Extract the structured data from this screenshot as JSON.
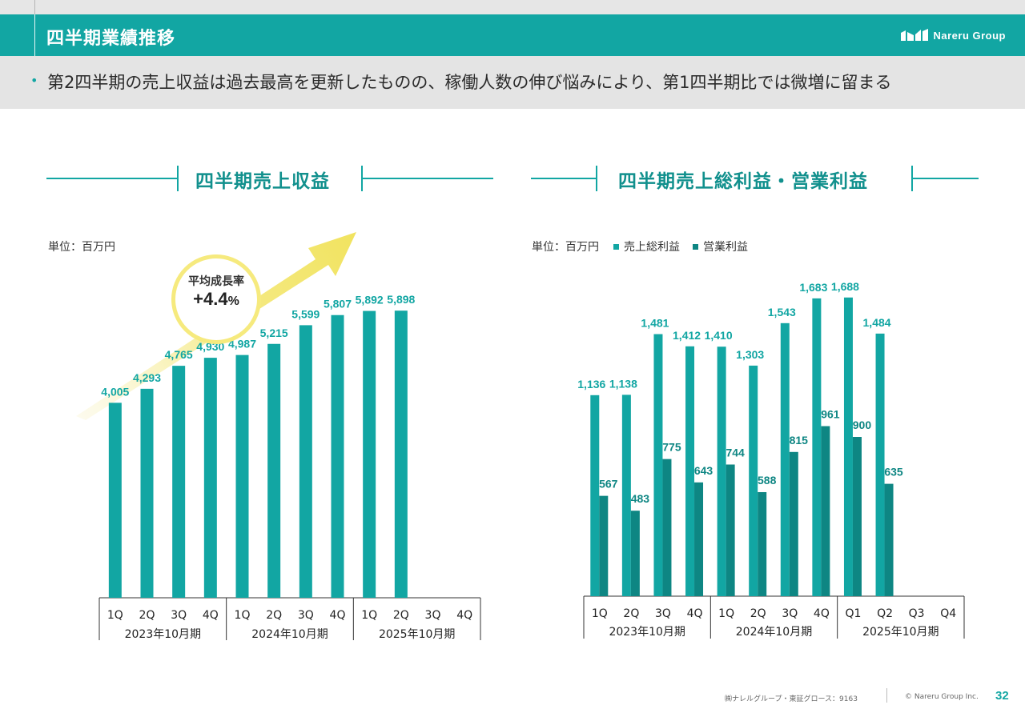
{
  "header": {
    "title": "四半期業績推移",
    "logo_text": "Nareru Group"
  },
  "subhead": {
    "bullet": "•",
    "text": "第2四半期の売上収益は過去最高を更新したものの、稼働人数の伸び悩みにより、第1四半期比では微増に留まる"
  },
  "left_section": {
    "title": "四半期売上収益",
    "unit": "単位：百万円"
  },
  "right_section": {
    "title": "四半期売上総利益・営業利益",
    "unit": "単位：百万円"
  },
  "badge": {
    "label": "平均成長率",
    "value": "+4.4",
    "unit": "%"
  },
  "footer": {
    "company": "㈱ナレルグループ・東証グロース：9163",
    "copyright": "© Nareru Group Inc.",
    "page": "32"
  },
  "colors": {
    "teal": "#12a6a3",
    "teal_dark": "#0e8683",
    "arrow_yellow": "#f3e66a"
  },
  "chart_data": [
    {
      "type": "bar",
      "title": "四半期売上収益",
      "unit_label": "単位：百万円",
      "categories": [
        "1Q",
        "2Q",
        "3Q",
        "4Q",
        "1Q",
        "2Q",
        "3Q",
        "4Q",
        "1Q",
        "2Q",
        "3Q",
        "4Q"
      ],
      "groups": [
        {
          "label": "2023年10月期",
          "count": 4
        },
        {
          "label": "2024年10月期",
          "count": 4
        },
        {
          "label": "2025年10月期",
          "count": 4
        }
      ],
      "series": [
        {
          "values": [
            4005,
            4293,
            4765,
            4930,
            4987,
            5215,
            5599,
            5807,
            5892,
            5898,
            null,
            null
          ],
          "labels": [
            "4,005",
            "4,293",
            "4,765",
            "4,930",
            "4,987",
            "5,215",
            "5,599",
            "5,807",
            "5,892",
            "5,898",
            "",
            ""
          ]
        }
      ],
      "ylim": [
        0,
        6000
      ]
    },
    {
      "type": "bar",
      "title": "四半期売上総利益・営業利益",
      "unit_label": "単位：百万円",
      "categories": [
        "1Q",
        "2Q",
        "3Q",
        "4Q",
        "1Q",
        "2Q",
        "3Q",
        "4Q",
        "Q1",
        "Q2",
        "Q3",
        "Q4"
      ],
      "groups": [
        {
          "label": "2023年10月期",
          "count": 4
        },
        {
          "label": "2024年10月期",
          "count": 4
        },
        {
          "label": "2025年10月期",
          "count": 4
        }
      ],
      "series": [
        {
          "name": "売上総利益",
          "color": "#12a6a3",
          "values": [
            1136,
            1138,
            1481,
            1412,
            1410,
            1303,
            1543,
            1683,
            1688,
            1484,
            null,
            null
          ],
          "labels": [
            "1,136",
            "1,138",
            "1,481",
            "1,412",
            "1,410",
            "1,303",
            "1,543",
            "1,683",
            "1,688",
            "1,484",
            "",
            ""
          ]
        },
        {
          "name": "営業利益",
          "color": "#0e8683",
          "values": [
            567,
            483,
            775,
            643,
            744,
            588,
            815,
            961,
            900,
            635,
            null,
            null
          ],
          "labels": [
            "567",
            "483",
            "775",
            "643",
            "744",
            "588",
            "815",
            "961",
            "900",
            "635",
            "",
            ""
          ]
        }
      ],
      "ylim": [
        0,
        1800
      ]
    }
  ]
}
